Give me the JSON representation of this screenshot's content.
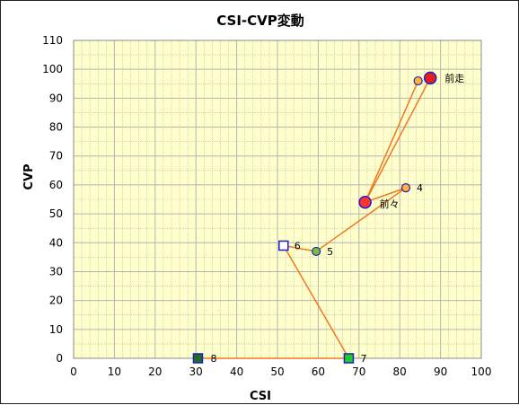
{
  "chart_data": {
    "type": "scatter",
    "title": "CSI-CVP変動",
    "xlabel": "CSI",
    "ylabel": "CVP",
    "xlim": [
      0,
      100
    ],
    "ylim": [
      0,
      110
    ],
    "x_ticks": [
      "0",
      "10",
      "20",
      "30",
      "40",
      "50",
      "60",
      "70",
      "80",
      "90",
      "100"
    ],
    "y_ticks": [
      "0",
      "10",
      "20",
      "30",
      "40",
      "50",
      "60",
      "70",
      "80",
      "90",
      "100",
      "110"
    ],
    "grid": true,
    "colors": {
      "plot_bg": "#ffffcc",
      "grid": "#b4b4b4",
      "line": "#f07820",
      "marker_edge": "#1e1ec8"
    },
    "line_order": [
      "8",
      "7",
      "6",
      "5",
      "4",
      "前々",
      "前走",
      "前々",
      "mid"
    ],
    "points": [
      {
        "id": "8",
        "label": "8",
        "x": 30.5,
        "y": 0,
        "marker": "square",
        "fill": "#1f6e1f"
      },
      {
        "id": "7",
        "label": "7",
        "x": 67.5,
        "y": 0,
        "marker": "square",
        "fill": "#22cc22"
      },
      {
        "id": "6",
        "label": "6",
        "x": 51.5,
        "y": 39,
        "marker": "square",
        "fill": "#ffffff"
      },
      {
        "id": "5",
        "label": "5",
        "x": 59.5,
        "y": 37,
        "marker": "circle",
        "fill": "#78be3c"
      },
      {
        "id": "4",
        "label": "4",
        "x": 81.5,
        "y": 59,
        "marker": "circle",
        "fill": "#ffb432"
      },
      {
        "id": "前々",
        "label": "前々",
        "x": 71.5,
        "y": 54,
        "marker": "circle-large",
        "fill": "#ff3232"
      },
      {
        "id": "前走",
        "label": "前走",
        "x": 87.5,
        "y": 97,
        "marker": "circle-large",
        "fill": "#e61e1e"
      },
      {
        "id": "mid",
        "label": "",
        "x": 84.5,
        "y": 96,
        "marker": "circle",
        "fill": "#ffb432"
      }
    ]
  }
}
